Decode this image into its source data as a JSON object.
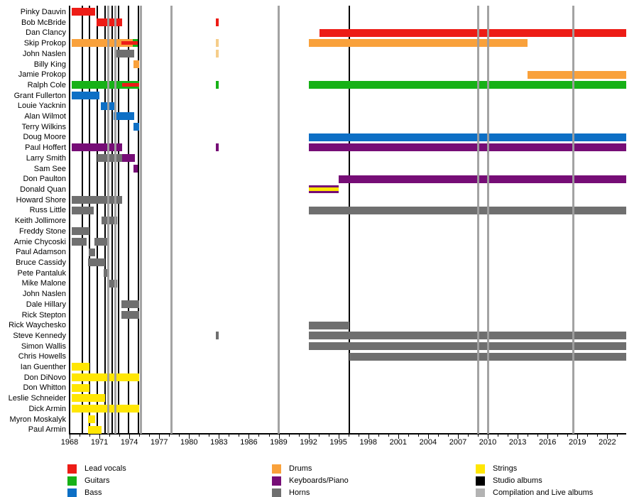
{
  "chart_data": {
    "type": "gantt",
    "variant": "band-members-timeline",
    "title": "",
    "x_axis": {
      "min": 1968,
      "max": 2023.9,
      "label_ticks": [
        1968,
        1971,
        1974,
        1977,
        1980,
        1983,
        1986,
        1989,
        1992,
        1995,
        1998,
        2001,
        2004,
        2007,
        2010,
        2013,
        2016,
        2019,
        2022
      ],
      "minor_tick_every": 1,
      "grid": false
    },
    "legend_position": "bottom",
    "legend": [
      {
        "key": "lead_vocals",
        "label": "Lead vocals",
        "color": "#ed1c16"
      },
      {
        "key": "guitars",
        "label": "Guitars",
        "color": "#17b117"
      },
      {
        "key": "bass",
        "label": "Bass",
        "color": "#0d6fc5"
      },
      {
        "key": "drums",
        "label": "Drums",
        "color": "#f9a13b"
      },
      {
        "key": "keyboards",
        "label": "Keyboards/Piano",
        "color": "#760d76"
      },
      {
        "key": "horns",
        "label": "Horns",
        "color": "#6f6f6f"
      },
      {
        "key": "strings",
        "label": "Strings",
        "color": "#ffe603"
      },
      {
        "key": "studio_albums",
        "label": "Studio albums",
        "color": "#000000"
      },
      {
        "key": "comp_live_albums",
        "label": "Compilation and Live albums",
        "color": "#b3b3b3"
      }
    ],
    "extra_colors": {
      "drums_faded": "#f5cd8a"
    },
    "album_lines": {
      "studio": [
        1969.3,
        1970.0,
        1970.8,
        1971.6,
        1972.25,
        1972.9,
        1973.9,
        1974.9,
        1996.1
      ],
      "compilation_live": [
        1971.9,
        1972.6,
        1975.2,
        1978.2,
        1989.0,
        2009.0,
        2010.0,
        2018.6
      ]
    },
    "members": [
      {
        "name": "Pinky Dauvin",
        "bars": [
          {
            "role": "lead_vocals",
            "start": 1968.2,
            "end": 1970.6
          }
        ]
      },
      {
        "name": "Bob McBride",
        "bars": [
          {
            "role": "lead_vocals",
            "start": 1970.7,
            "end": 1973.25
          },
          {
            "role": "lead_vocals",
            "start": 1982.7,
            "end": 1983.0
          }
        ]
      },
      {
        "name": "Dan Clancy",
        "bars": [
          {
            "role": "lead_vocals",
            "start": 1993.1,
            "end": 2023.9
          }
        ]
      },
      {
        "name": "Skip Prokop",
        "bars": [
          {
            "role": "drums",
            "start": 1968.2,
            "end": 1974.35
          },
          {
            "role": "guitars",
            "start": 1974.35,
            "end": 1974.85
          },
          {
            "role": "lead_vocals",
            "start": 1973.2,
            "end": 1974.85,
            "layer": "mid"
          },
          {
            "role": "drums_faded",
            "start": 1982.7,
            "end": 1983.0
          },
          {
            "role": "drums",
            "start": 1992.05,
            "end": 2014.0
          }
        ]
      },
      {
        "name": "John Naslen",
        "bars": [
          {
            "role": "horns",
            "start": 1972.5,
            "end": 1974.5
          },
          {
            "role": "drums_faded",
            "start": 1982.7,
            "end": 1983.0
          }
        ]
      },
      {
        "name": "Billy King",
        "bars": [
          {
            "role": "drums",
            "start": 1974.4,
            "end": 1975.0
          }
        ]
      },
      {
        "name": "Jamie Prokop",
        "bars": [
          {
            "role": "drums",
            "start": 2014.0,
            "end": 2023.9
          }
        ]
      },
      {
        "name": "Ralph Cole",
        "bars": [
          {
            "role": "guitars",
            "start": 1968.2,
            "end": 1975.0
          },
          {
            "role": "lead_vocals",
            "start": 1973.3,
            "end": 1975.0,
            "layer": "mid"
          },
          {
            "role": "guitars",
            "start": 1982.7,
            "end": 1983.0
          },
          {
            "role": "guitars",
            "start": 1992.05,
            "end": 2023.9
          }
        ]
      },
      {
        "name": "Grant Fullerton",
        "bars": [
          {
            "role": "bass",
            "start": 1968.2,
            "end": 1971.0
          }
        ]
      },
      {
        "name": "Louie Yacknin",
        "bars": [
          {
            "role": "bass",
            "start": 1971.15,
            "end": 1972.5
          }
        ]
      },
      {
        "name": "Alan Wilmot",
        "bars": [
          {
            "role": "bass",
            "start": 1972.4,
            "end": 1974.5
          }
        ]
      },
      {
        "name": "Terry Wilkins",
        "bars": [
          {
            "role": "bass",
            "start": 1974.4,
            "end": 1975.0
          }
        ]
      },
      {
        "name": "Doug Moore",
        "bars": [
          {
            "role": "bass",
            "start": 1992.05,
            "end": 2023.9
          }
        ]
      },
      {
        "name": "Paul Hoffert",
        "bars": [
          {
            "role": "keyboards",
            "start": 1968.2,
            "end": 1973.3
          },
          {
            "role": "keyboards",
            "start": 1982.7,
            "end": 1983.0
          },
          {
            "role": "keyboards",
            "start": 1992.05,
            "end": 2023.9
          }
        ]
      },
      {
        "name": "Larry Smith",
        "bars": [
          {
            "role": "horns",
            "start": 1970.75,
            "end": 1973.3
          },
          {
            "role": "keyboards",
            "start": 1973.3,
            "end": 1974.55
          }
        ]
      },
      {
        "name": "Sam See",
        "bars": [
          {
            "role": "keyboards",
            "start": 1974.4,
            "end": 1974.85
          }
        ]
      },
      {
        "name": "Don Paulton",
        "bars": [
          {
            "role": "keyboards",
            "start": 1995.0,
            "end": 2023.9
          }
        ]
      },
      {
        "name": "Donald Quan",
        "bars": [
          {
            "role": "keyboards",
            "start": 1992.05,
            "end": 1995.0
          },
          {
            "role": "strings",
            "start": 1992.05,
            "end": 1995.0,
            "layer": "mid"
          }
        ]
      },
      {
        "name": "Howard Shore",
        "bars": [
          {
            "role": "horns",
            "start": 1968.2,
            "end": 1973.3
          }
        ]
      },
      {
        "name": "Russ Little",
        "bars": [
          {
            "role": "horns",
            "start": 1968.2,
            "end": 1970.4
          },
          {
            "role": "horns",
            "start": 1992.05,
            "end": 2023.9
          }
        ]
      },
      {
        "name": "Keith Jollimore",
        "bars": [
          {
            "role": "horns",
            "start": 1971.2,
            "end": 1972.8
          }
        ]
      },
      {
        "name": "Freddy Stone",
        "bars": [
          {
            "role": "horns",
            "start": 1968.2,
            "end": 1970.0
          }
        ]
      },
      {
        "name": "Arnie Chycoski",
        "bars": [
          {
            "role": "horns",
            "start": 1968.2,
            "end": 1969.7
          },
          {
            "role": "horns",
            "start": 1970.5,
            "end": 1971.8
          }
        ]
      },
      {
        "name": "Paul Adamson",
        "bars": [
          {
            "role": "horns",
            "start": 1969.9,
            "end": 1970.6
          }
        ]
      },
      {
        "name": "Bruce Cassidy",
        "bars": [
          {
            "role": "horns",
            "start": 1969.85,
            "end": 1971.6
          }
        ]
      },
      {
        "name": "Pete Pantaluk",
        "bars": [
          {
            "role": "horns",
            "start": 1971.4,
            "end": 1972.0
          }
        ]
      },
      {
        "name": "Mike Malone",
        "bars": [
          {
            "role": "horns",
            "start": 1972.0,
            "end": 1972.8
          }
        ]
      },
      {
        "name": "John Naslen",
        "bars": []
      },
      {
        "name": "Dale Hillary",
        "bars": [
          {
            "role": "horns",
            "start": 1973.2,
            "end": 1975.0
          }
        ]
      },
      {
        "name": "Rick Stepton",
        "bars": [
          {
            "role": "horns",
            "start": 1973.2,
            "end": 1975.0
          }
        ]
      },
      {
        "name": "Rick Waychesko",
        "bars": [
          {
            "role": "horns",
            "start": 1992.05,
            "end": 1996.1
          }
        ]
      },
      {
        "name": "Steve Kennedy",
        "bars": [
          {
            "role": "horns",
            "start": 1982.7,
            "end": 1983.0
          },
          {
            "role": "horns",
            "start": 1992.05,
            "end": 2023.9
          }
        ]
      },
      {
        "name": "Simon Wallis",
        "bars": [
          {
            "role": "horns",
            "start": 1992.05,
            "end": 2023.9
          }
        ]
      },
      {
        "name": "Chris Howells",
        "bars": [
          {
            "role": "horns",
            "start": 1996.1,
            "end": 2023.9
          }
        ]
      },
      {
        "name": "Ian Guenther",
        "bars": [
          {
            "role": "strings",
            "start": 1968.2,
            "end": 1970.0
          }
        ]
      },
      {
        "name": "Don DiNovo",
        "bars": [
          {
            "role": "strings",
            "start": 1968.2,
            "end": 1975.0
          }
        ]
      },
      {
        "name": "Don Whitton",
        "bars": [
          {
            "role": "strings",
            "start": 1968.2,
            "end": 1970.0
          }
        ]
      },
      {
        "name": "Leslie Schneider",
        "bars": [
          {
            "role": "strings",
            "start": 1968.2,
            "end": 1971.6
          }
        ]
      },
      {
        "name": "Dick Armin",
        "bars": [
          {
            "role": "strings",
            "start": 1968.2,
            "end": 1975.0
          }
        ]
      },
      {
        "name": "Myron Moskalyk",
        "bars": [
          {
            "role": "strings",
            "start": 1969.85,
            "end": 1970.6
          }
        ]
      },
      {
        "name": "Paul Armin",
        "bars": [
          {
            "role": "strings",
            "start": 1969.85,
            "end": 1971.2
          }
        ]
      }
    ]
  }
}
